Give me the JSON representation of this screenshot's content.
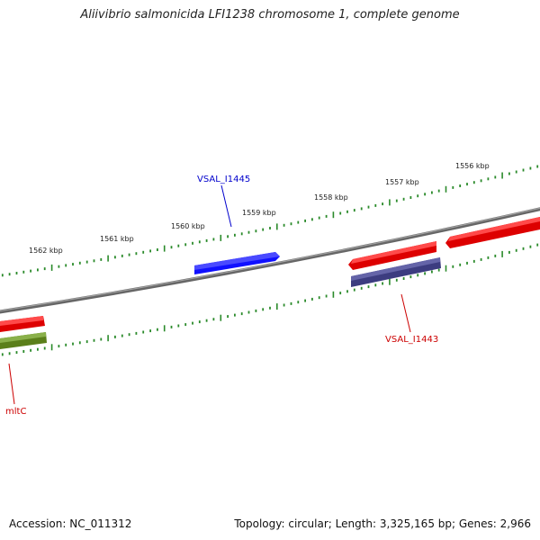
{
  "title": "Aliivibrio salmonicida LFI1238 chromosome 1, complete genome",
  "footer": {
    "accession": "Accession: NC_011312",
    "summary": "Topology: circular; Length: 3,325,165 bp; Genes: 2,966"
  },
  "scale_labels": [
    "1562 kbp",
    "1561 kbp",
    "1560 kbp",
    "1559 kbp",
    "1558 kbp",
    "1557 kbp",
    "1556 kbp"
  ],
  "gene_labels": [
    {
      "text": "VSAL_I1445",
      "color": "#0000cc"
    },
    {
      "text": "VSAL_I1443",
      "color": "#cc0000"
    },
    {
      "text": "mltC",
      "color": "#cc0000"
    }
  ],
  "colors": {
    "backbone": "#777777",
    "tick": "#2a8a2a",
    "forward_gene": "#ff0000",
    "reverse_gene": "#0000ff",
    "reverse_gene_dark": "#4a4a8c",
    "reverse_gene_olive": "#6b8e23"
  }
}
